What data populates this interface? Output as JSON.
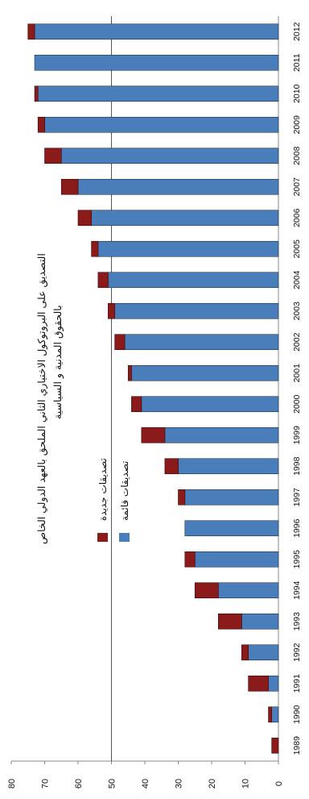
{
  "chart_data": {
    "type": "bar",
    "orientation": "horizontal-stacked",
    "title_lines": [
      "التصديق على البروتوكول الاختياري الثاني الملحق بالعهد الدولي الخاص",
      "بالحقوق المدنية و السياسية"
    ],
    "categories": [
      "1989",
      "1990",
      "1991",
      "1992",
      "1993",
      "1994",
      "1995",
      "1996",
      "1997",
      "1998",
      "1999",
      "2000",
      "2001",
      "2002",
      "2003",
      "2004",
      "2005",
      "2006",
      "2007",
      "2008",
      "2009",
      "2010",
      "2011",
      "2012"
    ],
    "category_labels": [
      "1989",
      "1990",
      "1991",
      "1992",
      "1993",
      "1994",
      "1995",
      "1996",
      "1997",
      "1998",
      "1999",
      "2000",
      "2001",
      "2002",
      "2003",
      "2004",
      "2005",
      "2006",
      "2007",
      "2008",
      "2009",
      "2010",
      "2011",
      "2012"
    ],
    "series": [
      {
        "name": "تصديقات قائمة",
        "color": "#4a7ebb",
        "values": [
          0,
          2,
          3,
          9,
          11,
          18,
          25,
          28,
          28,
          30,
          34,
          41,
          44,
          46,
          49,
          51,
          54,
          56,
          60,
          65,
          70,
          72,
          73,
          73
        ]
      },
      {
        "name": "تصديقات جديدة",
        "color": "#8b1a1a",
        "values": [
          2,
          1,
          6,
          2,
          7,
          7,
          3,
          0,
          2,
          4,
          7,
          3,
          1,
          3,
          2,
          3,
          2,
          4,
          5,
          5,
          2,
          1,
          0,
          2
        ]
      }
    ],
    "value_axis": {
      "min": 0,
      "max": 80,
      "step": 10,
      "tick_labels": [
        "0",
        "10",
        "20",
        "30",
        "40",
        "50",
        "60",
        "70",
        "80"
      ]
    },
    "grid": false,
    "legend_position": "center"
  }
}
